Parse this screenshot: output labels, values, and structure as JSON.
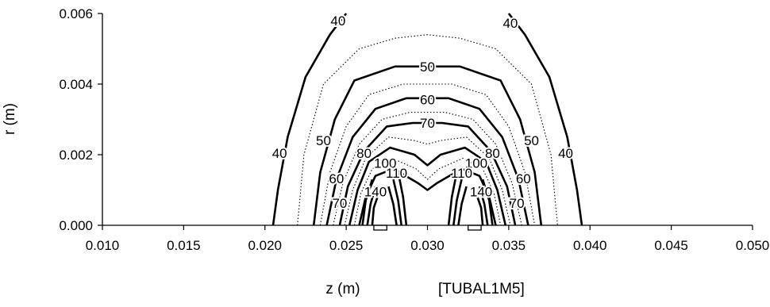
{
  "chart_data": {
    "type": "contour",
    "xlabel": "z (m)",
    "ylabel": "r (m)",
    "annotation": "[TUBAL1M5]",
    "xlim": [
      0.01,
      0.05
    ],
    "ylim": [
      0.0,
      0.006
    ],
    "x_ticks": [
      "0.010",
      "0.015",
      "0.020",
      "0.025",
      "0.030",
      "0.035",
      "0.040",
      "0.045",
      "0.050"
    ],
    "y_ticks": [
      "0.000",
      "0.002",
      "0.004",
      "0.006"
    ],
    "grid": false,
    "legend": "none",
    "contour_labels": [
      {
        "text": "40",
        "z": 0.0209,
        "r": 0.00205
      },
      {
        "text": "40",
        "z": 0.0385,
        "r": 0.00205
      },
      {
        "text": "40",
        "z": 0.0245,
        "r": 0.0058
      },
      {
        "text": "40",
        "z": 0.0351,
        "r": 0.00573
      },
      {
        "text": "50",
        "z": 0.0236,
        "r": 0.0024
      },
      {
        "text": "50",
        "z": 0.0364,
        "r": 0.0024
      },
      {
        "text": "50",
        "z": 0.03,
        "r": 0.0045
      },
      {
        "text": "60",
        "z": 0.03,
        "r": 0.00356
      },
      {
        "text": "60",
        "z": 0.0244,
        "r": 0.00133
      },
      {
        "text": "60",
        "z": 0.0359,
        "r": 0.00133
      },
      {
        "text": "70",
        "z": 0.03,
        "r": 0.0029
      },
      {
        "text": "70",
        "z": 0.0246,
        "r": 0.00063
      },
      {
        "text": "70",
        "z": 0.0355,
        "r": 0.00063
      },
      {
        "text": "80",
        "z": 0.0261,
        "r": 0.00205
      },
      {
        "text": "80",
        "z": 0.034,
        "r": 0.00205
      },
      {
        "text": "100",
        "z": 0.0274,
        "r": 0.00176
      },
      {
        "text": "100",
        "z": 0.033,
        "r": 0.00176
      },
      {
        "text": "110",
        "z": 0.0281,
        "r": 0.00148
      },
      {
        "text": "110",
        "z": 0.0321,
        "r": 0.00148
      },
      {
        "text": "140",
        "z": 0.0268,
        "r": 0.00095
      },
      {
        "text": "140",
        "z": 0.0333,
        "r": 0.00095
      }
    ],
    "contour_lines": [
      {
        "style": "solid",
        "z": [
          0.0205,
          0.0208,
          0.0214,
          0.0225,
          0.024,
          0.025
        ],
        "r": [
          0.0,
          0.001,
          0.0025,
          0.0042,
          0.0054,
          0.006
        ]
      },
      {
        "style": "solid",
        "z": [
          0.035,
          0.036,
          0.0375,
          0.0386,
          0.0392,
          0.0395
        ],
        "r": [
          0.006,
          0.0054,
          0.0042,
          0.0025,
          0.001,
          0.0
        ]
      },
      {
        "style": "dotted",
        "z": [
          0.022,
          0.0224,
          0.0236,
          0.0258,
          0.028,
          0.03,
          0.032,
          0.0342,
          0.0364,
          0.0376,
          0.038
        ],
        "r": [
          0.0,
          0.002,
          0.004,
          0.005,
          0.0053,
          0.0054,
          0.0053,
          0.005,
          0.004,
          0.002,
          0.0
        ]
      },
      {
        "style": "solid",
        "z": [
          0.023,
          0.0234,
          0.0243,
          0.0255,
          0.028,
          0.03,
          0.032,
          0.0345,
          0.0357,
          0.0366,
          0.037
        ],
        "r": [
          0.0,
          0.0015,
          0.003,
          0.0041,
          0.0045,
          0.0045,
          0.0045,
          0.0041,
          0.003,
          0.0015,
          0.0
        ]
      },
      {
        "style": "dotted",
        "z": [
          0.0234,
          0.024,
          0.025,
          0.0264,
          0.0285,
          0.03,
          0.0315,
          0.0336,
          0.035,
          0.036,
          0.0366
        ],
        "r": [
          0.0,
          0.0015,
          0.0028,
          0.0037,
          0.004,
          0.004,
          0.004,
          0.0037,
          0.0028,
          0.0015,
          0.0
        ]
      },
      {
        "style": "solid",
        "z": [
          0.0238,
          0.0244,
          0.0254,
          0.0268,
          0.0287,
          0.03,
          0.0313,
          0.0332,
          0.0346,
          0.0356,
          0.0362
        ],
        "r": [
          0.0,
          0.0013,
          0.0025,
          0.0033,
          0.0036,
          0.0036,
          0.0036,
          0.0033,
          0.0025,
          0.0013,
          0.0
        ]
      },
      {
        "style": "dotted",
        "z": [
          0.0242,
          0.0248,
          0.0258,
          0.0272,
          0.0289,
          0.03,
          0.0311,
          0.0328,
          0.0342,
          0.0352,
          0.0358
        ],
        "r": [
          0.0,
          0.0012,
          0.0023,
          0.003,
          0.0032,
          0.0032,
          0.0032,
          0.003,
          0.0023,
          0.0012,
          0.0
        ]
      },
      {
        "style": "solid",
        "z": [
          0.0246,
          0.0251,
          0.0261,
          0.0275,
          0.0291,
          0.03,
          0.0309,
          0.0325,
          0.0339,
          0.0349,
          0.0354
        ],
        "r": [
          0.0,
          0.0011,
          0.0021,
          0.0028,
          0.0029,
          0.0029,
          0.0029,
          0.0028,
          0.0021,
          0.0011,
          0.0
        ]
      },
      {
        "style": "dotted",
        "z": [
          0.0249,
          0.0254,
          0.0262,
          0.0276,
          0.0292,
          0.03,
          0.0308,
          0.0324,
          0.0338,
          0.0346,
          0.0351
        ],
        "r": [
          0.0,
          0.001,
          0.0019,
          0.0025,
          0.0024,
          0.0023,
          0.0024,
          0.0025,
          0.0019,
          0.001,
          0.0
        ]
      },
      {
        "style": "solid",
        "z": [
          0.0252,
          0.0257,
          0.0264,
          0.0277,
          0.0292,
          0.03,
          0.0308,
          0.0323,
          0.0336,
          0.0343,
          0.0348
        ],
        "r": [
          0.0,
          0.001,
          0.0018,
          0.0022,
          0.002,
          0.0017,
          0.002,
          0.0022,
          0.0018,
          0.001,
          0.0
        ]
      },
      {
        "style": "dotted",
        "z": [
          0.0255,
          0.0259,
          0.0266,
          0.0278,
          0.0293,
          0.03,
          0.0307,
          0.0322,
          0.0334,
          0.0341,
          0.0345
        ],
        "r": [
          0.0,
          0.0009,
          0.0016,
          0.0019,
          0.0016,
          0.0013,
          0.0016,
          0.0019,
          0.0016,
          0.0009,
          0.0
        ]
      },
      {
        "style": "solid",
        "z": [
          0.0258,
          0.0262,
          0.0268,
          0.0279,
          0.0294,
          0.03,
          0.0306,
          0.0321,
          0.0332,
          0.0338,
          0.0342
        ],
        "r": [
          0.0,
          0.0008,
          0.0014,
          0.0016,
          0.0012,
          0.001,
          0.0012,
          0.0016,
          0.0014,
          0.0008,
          0.0
        ]
      }
    ],
    "hot_spot_lines": [
      {
        "style": "solid",
        "z": [
          0.026,
          0.0262,
          0.0266
        ],
        "r": [
          0.0,
          0.0007,
          0.0013
        ]
      },
      {
        "style": "solid",
        "z": [
          0.0263,
          0.0265,
          0.0268
        ],
        "r": [
          0.0,
          0.0006,
          0.0011
        ]
      },
      {
        "style": "solid",
        "z": [
          0.0266,
          0.0267,
          0.027
        ],
        "r": [
          0.0,
          0.0005,
          0.0009
        ]
      },
      {
        "style": "solid",
        "z": [
          0.0281,
          0.0279,
          0.0276
        ],
        "r": [
          0.0,
          0.0006,
          0.0011
        ]
      },
      {
        "style": "solid",
        "z": [
          0.0284,
          0.0282,
          0.0279
        ],
        "r": [
          0.0,
          0.0007,
          0.0013
        ]
      },
      {
        "style": "solid",
        "z": [
          0.0287,
          0.0285,
          0.0282
        ],
        "r": [
          0.0,
          0.0008,
          0.0015
        ]
      },
      {
        "style": "solid",
        "z": [
          0.0319,
          0.0321,
          0.0324
        ],
        "r": [
          0.0,
          0.0006,
          0.0011
        ]
      },
      {
        "style": "solid",
        "z": [
          0.0316,
          0.0318,
          0.0321
        ],
        "r": [
          0.0,
          0.0007,
          0.0013
        ]
      },
      {
        "style": "solid",
        "z": [
          0.0313,
          0.0315,
          0.0318
        ],
        "r": [
          0.0,
          0.0008,
          0.0015
        ]
      },
      {
        "style": "solid",
        "z": [
          0.0334,
          0.0333,
          0.033
        ],
        "r": [
          0.0,
          0.0005,
          0.0009
        ]
      },
      {
        "style": "solid",
        "z": [
          0.0337,
          0.0335,
          0.0332
        ],
        "r": [
          0.0,
          0.0006,
          0.0011
        ]
      },
      {
        "style": "solid",
        "z": [
          0.034,
          0.0338,
          0.0334
        ],
        "r": [
          0.0,
          0.0007,
          0.0013
        ]
      }
    ],
    "heater_markers": [
      {
        "z_start": 0.0267,
        "z_end": 0.0275
      },
      {
        "z_start": 0.0325,
        "z_end": 0.0333
      }
    ]
  }
}
